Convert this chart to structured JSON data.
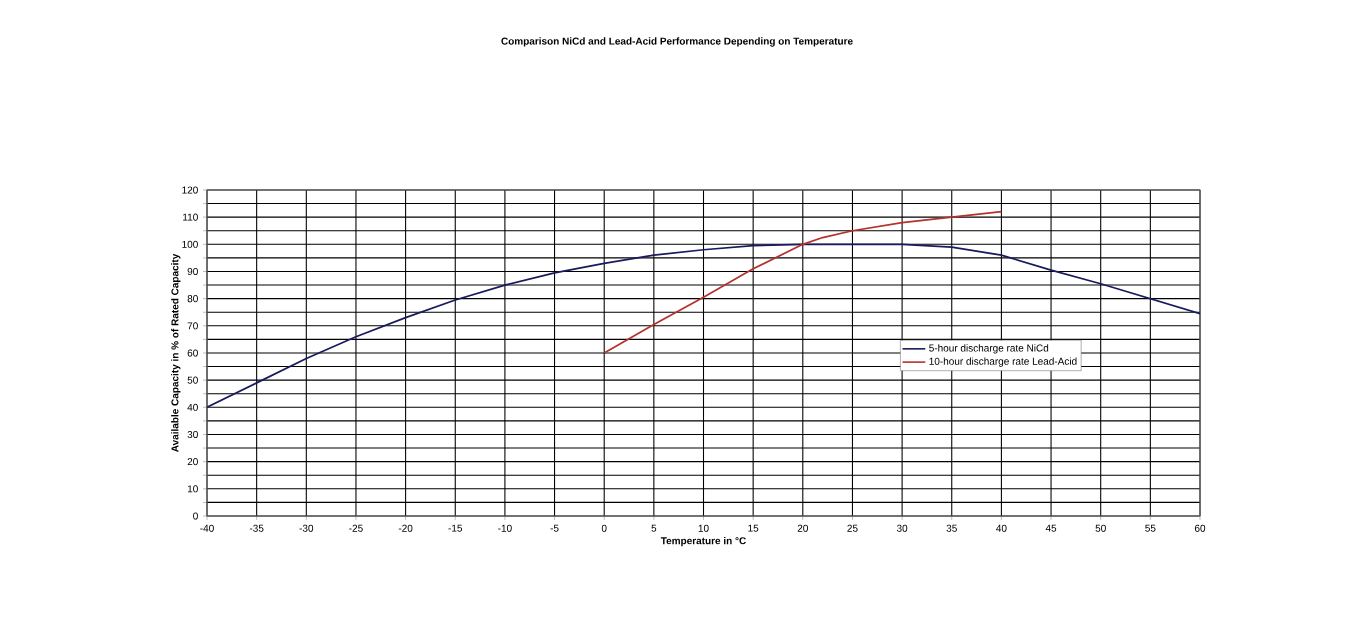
{
  "chart_data": {
    "type": "line",
    "title": "Comparison NiCd and Lead-Acid Performance Depending on Temperature",
    "xlabel": "Temperature in °C",
    "ylabel": "Available Capacity in % of Rated Capacity",
    "xlim": [
      -40,
      60
    ],
    "ylim": [
      0,
      120
    ],
    "xticks": [
      -40,
      -35,
      -30,
      -25,
      -20,
      -15,
      -10,
      -5,
      0,
      5,
      10,
      15,
      20,
      25,
      30,
      35,
      40,
      45,
      50,
      55,
      60
    ],
    "yticks": [
      0,
      {
        "value": 5,
        "label": null
      },
      10,
      {
        "value": 15,
        "label": null
      },
      20,
      {
        "value": 25,
        "label": null
      },
      30,
      {
        "value": 35,
        "label": null
      },
      40,
      {
        "value": 45,
        "label": null
      },
      50,
      {
        "value": 55,
        "label": null
      },
      60,
      {
        "value": 65,
        "label": null
      },
      70,
      {
        "value": 75,
        "label": null
      },
      80,
      {
        "value": 85,
        "label": null
      },
      90,
      {
        "value": 95,
        "label": null
      },
      100,
      {
        "value": 105,
        "label": null
      },
      110,
      {
        "value": 115,
        "label": null
      },
      120
    ],
    "grid": true,
    "legend": "right",
    "marker": "none",
    "line_style": "solid",
    "series": [
      {
        "name": "5-hour discharge rate NiCd",
        "color": "#1a1a5e",
        "x": [
          -40,
          -35,
          -30,
          -25,
          -20,
          -15,
          -10,
          -5,
          0,
          5,
          10,
          15,
          20,
          25,
          30,
          35,
          40,
          45,
          50,
          55,
          60
        ],
        "values": [
          40,
          49,
          58,
          66,
          73,
          79.5,
          85,
          89.5,
          93,
          96,
          98,
          99.5,
          100,
          100,
          100,
          99,
          96,
          90.5,
          85.5,
          80,
          74.5
        ]
      },
      {
        "name": "10-hour discharge rate Lead-Acid",
        "color": "#b5312b",
        "x": [
          0,
          5,
          10,
          15,
          20,
          22,
          25,
          30,
          35,
          40
        ],
        "values": [
          60,
          70.5,
          80.5,
          91,
          100,
          102.5,
          105,
          108,
          110,
          112
        ]
      }
    ]
  }
}
